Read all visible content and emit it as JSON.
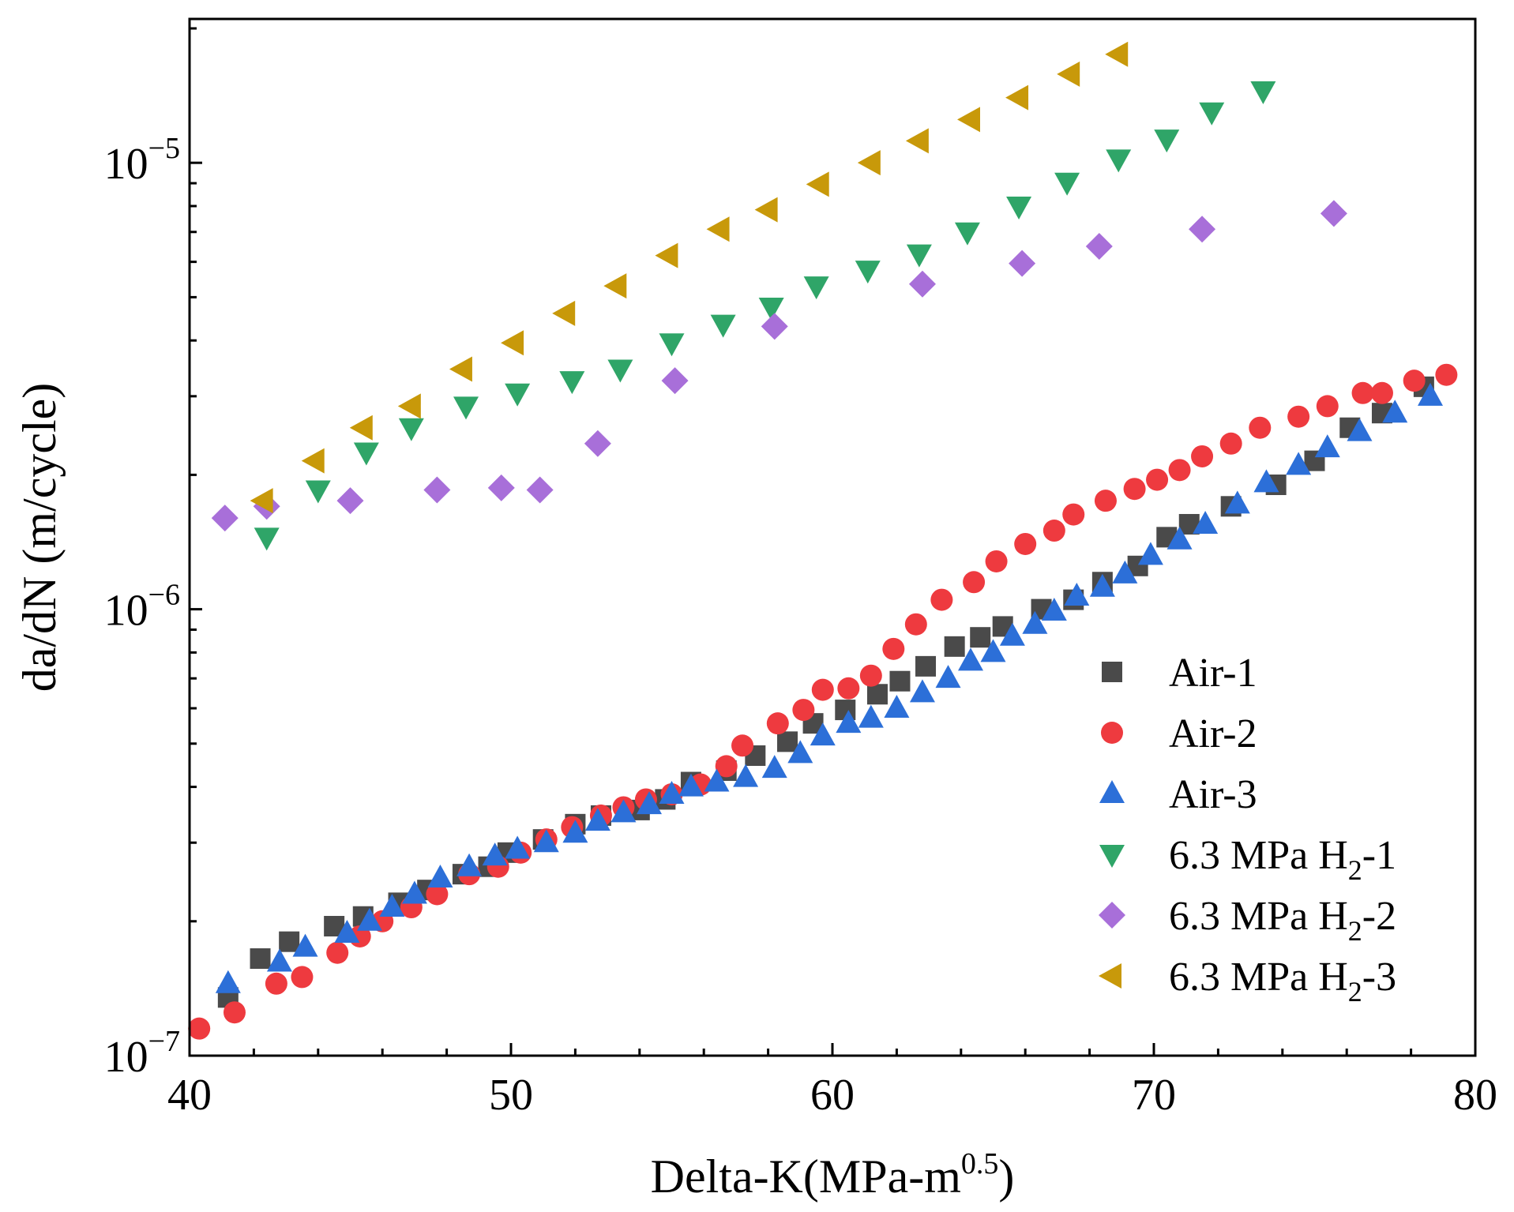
{
  "chart_data": {
    "type": "scatter",
    "title": "",
    "xlabel": "Delta-K(MPa-m",
    "xlabel_exponent": "0.5",
    "xlabel_suffix": ")",
    "ylabel": "da/dN (m/cycle)",
    "xlim": [
      40,
      80
    ],
    "ylim": [
      1e-07,
      2.1e-05
    ],
    "yscale": "log",
    "x_ticks": [
      {
        "value": 40,
        "label": "40"
      },
      {
        "value": 50,
        "label": "50"
      },
      {
        "value": 60,
        "label": "60"
      },
      {
        "value": 70,
        "label": "70"
      },
      {
        "value": 80,
        "label": "80"
      }
    ],
    "y_ticks": [
      {
        "value": 1e-07,
        "base": "10",
        "exp": "−7"
      },
      {
        "value": 1e-06,
        "base": "10",
        "exp": "−6"
      },
      {
        "value": 1e-05,
        "base": "10",
        "exp": "−5"
      }
    ],
    "legend_position": "bottom-right",
    "series": [
      {
        "name": "Air-1",
        "legend_main": "Air-1",
        "legend_sub": "",
        "legend_tail": "",
        "marker": "square",
        "color": "#4a4a4a",
        "x": [
          41.2,
          42.2,
          43.1,
          44.5,
          45.4,
          46.5,
          47.4,
          48.5,
          49.3,
          49.9,
          51.0,
          52.0,
          52.8,
          54.0,
          54.8,
          55.6,
          56.7,
          57.6,
          58.6,
          59.4,
          60.4,
          61.4,
          62.1,
          62.9,
          63.8,
          64.6,
          65.3,
          66.5,
          67.5,
          68.4,
          69.5,
          70.4,
          71.1,
          72.4,
          73.8,
          75.0,
          76.1,
          77.1,
          78.4
        ],
        "y": [
          1.35e-07,
          1.65e-07,
          1.8e-07,
          1.95e-07,
          2.05e-07,
          2.2e-07,
          2.35e-07,
          2.55e-07,
          2.65e-07,
          2.85e-07,
          3.05e-07,
          3.3e-07,
          3.45e-07,
          3.55e-07,
          3.75e-07,
          4.1e-07,
          4.35e-07,
          4.7e-07,
          5.05e-07,
          5.55e-07,
          5.95e-07,
          6.45e-07,
          6.9e-07,
          7.45e-07,
          8.25e-07,
          8.65e-07,
          9.15e-07,
          1e-06,
          1.05e-06,
          1.15e-06,
          1.25e-06,
          1.45e-06,
          1.55e-06,
          1.7e-06,
          1.9e-06,
          2.15e-06,
          2.55e-06,
          2.75e-06,
          3.15e-06
        ]
      },
      {
        "name": "Air-2",
        "legend_main": "Air-2",
        "legend_sub": "",
        "legend_tail": "",
        "marker": "circle",
        "color": "#ee3a3f",
        "x": [
          40.3,
          41.4,
          42.7,
          43.5,
          44.6,
          45.3,
          46.0,
          46.9,
          47.7,
          48.7,
          49.6,
          50.3,
          51.1,
          51.9,
          52.8,
          53.5,
          54.2,
          55.0,
          55.9,
          56.7,
          57.2,
          58.3,
          59.1,
          59.7,
          60.5,
          61.2,
          61.9,
          62.6,
          63.4,
          64.4,
          65.1,
          66.0,
          66.9,
          67.5,
          68.5,
          69.4,
          70.1,
          70.8,
          71.5,
          72.4,
          73.3,
          74.5,
          75.4,
          76.5,
          77.1,
          78.1,
          79.1
        ],
        "y": [
          1.15e-07,
          1.25e-07,
          1.45e-07,
          1.5e-07,
          1.7e-07,
          1.85e-07,
          2e-07,
          2.15e-07,
          2.3e-07,
          2.55e-07,
          2.65e-07,
          2.85e-07,
          3.05e-07,
          3.25e-07,
          3.45e-07,
          3.6e-07,
          3.75e-07,
          3.85e-07,
          4.05e-07,
          4.45e-07,
          4.95e-07,
          5.55e-07,
          5.95e-07,
          6.6e-07,
          6.65e-07,
          7.1e-07,
          8.15e-07,
          9.25e-07,
          1.05e-06,
          1.15e-06,
          1.28e-06,
          1.4e-06,
          1.5e-06,
          1.63e-06,
          1.75e-06,
          1.86e-06,
          1.95e-06,
          2.05e-06,
          2.2e-06,
          2.35e-06,
          2.55e-06,
          2.7e-06,
          2.85e-06,
          3.05e-06,
          3.05e-06,
          3.25e-06,
          3.35e-06
        ]
      },
      {
        "name": "Air-3",
        "legend_main": "Air-3",
        "legend_sub": "",
        "legend_tail": "",
        "marker": "triangle-up",
        "color": "#2c6fd8",
        "x": [
          41.2,
          42.8,
          43.6,
          44.9,
          45.6,
          46.3,
          47.0,
          47.8,
          48.7,
          49.5,
          50.2,
          51.1,
          52.0,
          52.7,
          53.5,
          54.3,
          55.0,
          55.6,
          56.4,
          57.3,
          58.2,
          59.0,
          59.7,
          60.5,
          61.2,
          62.0,
          62.8,
          63.6,
          64.3,
          65.0,
          65.6,
          66.3,
          66.9,
          67.6,
          68.4,
          69.1,
          69.9,
          70.8,
          71.6,
          72.6,
          73.5,
          74.5,
          75.4,
          76.4,
          77.5,
          78.6
        ],
        "y": [
          1.45e-07,
          1.62e-07,
          1.75e-07,
          1.88e-07,
          2e-07,
          2.15e-07,
          2.3e-07,
          2.5e-07,
          2.65e-07,
          2.8e-07,
          2.9e-07,
          3e-07,
          3.15e-07,
          3.35e-07,
          3.5e-07,
          3.65e-07,
          3.85e-07,
          4e-07,
          4.1e-07,
          4.2e-07,
          4.4e-07,
          4.75e-07,
          5.2e-07,
          5.55e-07,
          5.7e-07,
          6e-07,
          6.5e-07,
          7e-07,
          7.65e-07,
          8e-07,
          8.7e-07,
          9.25e-07,
          9.9e-07,
          1.07e-06,
          1.12e-06,
          1.2e-06,
          1.32e-06,
          1.43e-06,
          1.55e-06,
          1.72e-06,
          1.92e-06,
          2.1e-06,
          2.3e-06,
          2.5e-06,
          2.75e-06,
          3e-06
        ]
      },
      {
        "name": "6.3 MPa H2-1",
        "legend_main": "6.3 MPa H",
        "legend_sub": "2",
        "legend_tail": "-1",
        "marker": "triangle-down",
        "color": "#2fa568",
        "x": [
          42.4,
          44.0,
          45.5,
          46.9,
          48.6,
          50.2,
          51.9,
          53.4,
          55.0,
          56.6,
          58.1,
          59.5,
          61.1,
          62.7,
          64.2,
          65.8,
          67.3,
          68.9,
          70.4,
          71.8,
          73.4
        ],
        "y": [
          1.45e-06,
          1.85e-06,
          2.25e-06,
          2.55e-06,
          2.85e-06,
          3.05e-06,
          3.25e-06,
          3.45e-06,
          3.95e-06,
          4.35e-06,
          4.75e-06,
          5.3e-06,
          5.75e-06,
          6.25e-06,
          7e-06,
          8e-06,
          9.05e-06,
          1.02e-05,
          1.13e-05,
          1.3e-05,
          1.45e-05
        ]
      },
      {
        "name": "6.3 MPa H2-2",
        "legend_main": "6.3 MPa H",
        "legend_sub": "2",
        "legend_tail": "-2",
        "marker": "diamond",
        "color": "#a86fd9",
        "x": [
          41.1,
          42.4,
          45.0,
          47.7,
          49.7,
          50.9,
          52.7,
          55.1,
          58.2,
          62.8,
          65.9,
          68.3,
          71.5,
          75.6
        ],
        "y": [
          1.6e-06,
          1.7e-06,
          1.75e-06,
          1.85e-06,
          1.87e-06,
          1.85e-06,
          2.35e-06,
          3.25e-06,
          4.3e-06,
          5.35e-06,
          5.95e-06,
          6.5e-06,
          7.1e-06,
          7.7e-06
        ]
      },
      {
        "name": "6.3 MPa H2-3",
        "legend_main": "6.3 MPa H",
        "legend_sub": "2",
        "legend_tail": "-3",
        "marker": "triangle-left",
        "color": "#c8990a",
        "x": [
          42.3,
          43.9,
          45.4,
          46.9,
          48.5,
          50.1,
          51.7,
          53.3,
          54.9,
          56.5,
          58.0,
          59.6,
          61.2,
          62.7,
          64.3,
          65.8,
          67.4,
          68.9
        ],
        "y": [
          1.75e-06,
          2.15e-06,
          2.55e-06,
          2.85e-06,
          3.45e-06,
          3.95e-06,
          4.6e-06,
          5.3e-06,
          6.2e-06,
          7.1e-06,
          7.85e-06,
          8.95e-06,
          1e-05,
          1.12e-05,
          1.25e-05,
          1.4e-05,
          1.58e-05,
          1.75e-05
        ]
      }
    ]
  }
}
